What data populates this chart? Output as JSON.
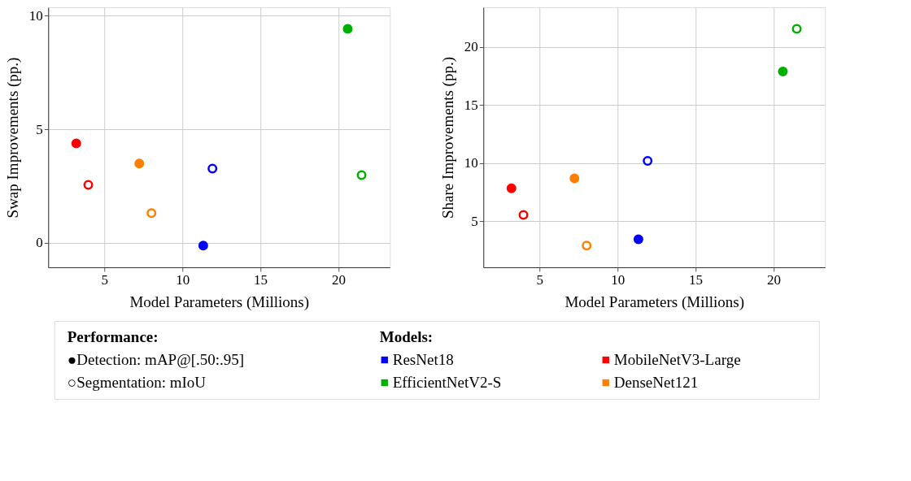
{
  "chart_data": [
    {
      "type": "scatter",
      "xlabel": "Model Parameters (Millions)",
      "ylabel": "Swap Improvements (pp.)",
      "xlim": [
        1.4,
        23.3
      ],
      "xticks": [
        5,
        10,
        15,
        20
      ],
      "ylim": [
        -1.08,
        10.37
      ],
      "yticks": [
        0,
        5,
        10
      ],
      "grid": true,
      "marker": "circle",
      "legend": "bottom",
      "legend_title": "Models:",
      "annotations": [
        "Performance:",
        "●Detection: mAP@[.50:.95]",
        "○Segmentation: mIoU"
      ],
      "series": [
        {
          "name": "ResNet18",
          "color": "#0000ff",
          "x": [
            11.34
          ],
          "values": [
            -0.12
          ],
          "marker": "circle"
        },
        {
          "name": "EfficientNetV2-S",
          "color": "#00b000",
          "x": [
            20.6
          ],
          "values": [
            9.42
          ],
          "marker": "circle"
        },
        {
          "name": "MobileNetV3-Large",
          "color": "#ff0000",
          "x": [
            3.2
          ],
          "values": [
            4.38
          ],
          "marker": "circle"
        },
        {
          "name": "DenseNet121",
          "color": "#ff8000",
          "x": [
            7.24
          ],
          "values": [
            3.49
          ],
          "marker": "circle"
        },
        {
          "color": "#0000ff",
          "x": [
            11.93
          ],
          "values": [
            3.27
          ],
          "marker": "circle-open"
        },
        {
          "color": "#00b000",
          "x": [
            21.49
          ],
          "values": [
            2.98
          ],
          "marker": "circle-open"
        },
        {
          "color": "#ff0000",
          "x": [
            3.97
          ],
          "values": [
            2.55
          ],
          "marker": "circle-open"
        },
        {
          "color": "#ff8000",
          "x": [
            8.02
          ],
          "values": [
            1.31
          ],
          "marker": "circle-open"
        }
      ]
    },
    {
      "type": "scatter",
      "xlabel": "Model Parameters (Millions)",
      "ylabel": "Share Improvements (pp.)",
      "xlim": [
        1.4,
        23.3
      ],
      "xticks": [
        5,
        10,
        15,
        20
      ],
      "ylim": [
        1.05,
        23.39
      ],
      "yticks": [
        5,
        10,
        15,
        20
      ],
      "grid": true,
      "marker": "circle",
      "series": [
        {
          "color": "#0000ff",
          "x": [
            11.34
          ],
          "values": [
            3.46
          ],
          "marker": "circle"
        },
        {
          "color": "#00b000",
          "x": [
            20.6
          ],
          "values": [
            17.88
          ],
          "marker": "circle"
        },
        {
          "color": "#ff0000",
          "x": [
            3.2
          ],
          "values": [
            7.84
          ],
          "marker": "circle"
        },
        {
          "color": "#ff8000",
          "x": [
            7.24
          ],
          "values": [
            8.7
          ],
          "marker": "circle"
        },
        {
          "color": "#0000ff",
          "x": [
            11.93
          ],
          "values": [
            10.2
          ],
          "marker": "circle-open"
        },
        {
          "color": "#00b000",
          "x": [
            21.49
          ],
          "values": [
            21.54
          ],
          "marker": "circle-open"
        },
        {
          "color": "#ff0000",
          "x": [
            3.97
          ],
          "values": [
            5.56
          ],
          "marker": "circle-open"
        },
        {
          "color": "#ff8000",
          "x": [
            8.02
          ],
          "values": [
            2.92
          ],
          "marker": "circle-open"
        }
      ]
    }
  ]
}
